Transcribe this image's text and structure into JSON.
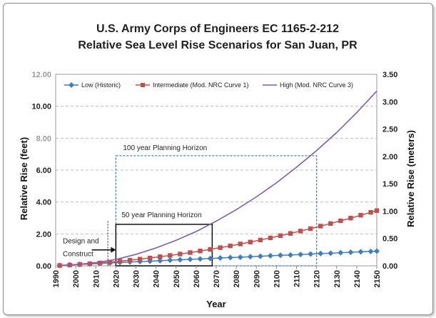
{
  "chart_data": {
    "type": "line",
    "title": [
      "U.S. Army Corps of Engineers EC 1165-2-212",
      "Relative Sea Level Rise Scenarios for San Juan, PR"
    ],
    "xlabel": "Year",
    "ylabel_left": "Relative Rise (feet)",
    "ylabel_right": "Relative Rise (meters)",
    "xlim": [
      1990,
      2150
    ],
    "ylim_left": [
      0,
      12
    ],
    "ylim_right": [
      0,
      3.5
    ],
    "x_ticks": [
      "1990",
      "2000",
      "2010",
      "2020",
      "2030",
      "2040",
      "2050",
      "2060",
      "2070",
      "2080",
      "2090",
      "2100",
      "2110",
      "2120",
      "2130",
      "2140",
      "2150"
    ],
    "y_ticks_left": [
      "0.00",
      "2.00",
      "4.00",
      "6.00",
      "8.00",
      "10.00",
      "12.00"
    ],
    "y_ticks_right": [
      "0.00",
      "0.50",
      "1.00",
      "1.50",
      "2.00",
      "2.50",
      "3.00",
      "3.50"
    ],
    "grid": "horizontal dashed",
    "legend_position": "top",
    "series": [
      {
        "name": "Low (Historic)",
        "color": "#3f7dbf",
        "marker": "diamond",
        "x": [
          1992,
          1997,
          2002,
          2007,
          2012,
          2017,
          2022,
          2027,
          2032,
          2037,
          2042,
          2047,
          2052,
          2057,
          2062,
          2067,
          2072,
          2077,
          2082,
          2087,
          2092,
          2097,
          2102,
          2107,
          2112,
          2117,
          2122,
          2127,
          2132,
          2137,
          2142,
          2147,
          2150
        ],
        "y": [
          0.03,
          0.06,
          0.09,
          0.12,
          0.15,
          0.18,
          0.21,
          0.24,
          0.27,
          0.29,
          0.32,
          0.35,
          0.38,
          0.41,
          0.43,
          0.46,
          0.49,
          0.52,
          0.54,
          0.57,
          0.6,
          0.63,
          0.66,
          0.68,
          0.71,
          0.74,
          0.77,
          0.79,
          0.82,
          0.85,
          0.88,
          0.9,
          0.92
        ]
      },
      {
        "name": "Intermediate (Mod. NRC Curve 1)",
        "color": "#c0504d",
        "marker": "square",
        "x": [
          1992,
          1997,
          2002,
          2007,
          2012,
          2017,
          2022,
          2027,
          2032,
          2037,
          2042,
          2047,
          2052,
          2057,
          2062,
          2067,
          2072,
          2077,
          2082,
          2087,
          2092,
          2097,
          2102,
          2107,
          2112,
          2117,
          2122,
          2127,
          2132,
          2137,
          2142,
          2147,
          2150
        ],
        "y": [
          0.02,
          0.05,
          0.09,
          0.13,
          0.18,
          0.23,
          0.29,
          0.35,
          0.42,
          0.49,
          0.57,
          0.65,
          0.74,
          0.83,
          0.93,
          1.03,
          1.14,
          1.25,
          1.37,
          1.49,
          1.62,
          1.75,
          1.89,
          2.03,
          2.18,
          2.33,
          2.49,
          2.65,
          2.82,
          2.99,
          3.17,
          3.35,
          3.46
        ]
      },
      {
        "name": "High (Mod. NRC Curve 3)",
        "color": "#7f5fa5",
        "marker": "none",
        "x": [
          1992,
          2000,
          2010,
          2020,
          2030,
          2040,
          2050,
          2060,
          2070,
          2080,
          2090,
          2100,
          2110,
          2120,
          2130,
          2140,
          2150
        ],
        "y": [
          0.0,
          0.08,
          0.2,
          0.4,
          0.72,
          1.12,
          1.6,
          2.15,
          2.8,
          3.52,
          4.32,
          5.2,
          6.18,
          7.22,
          8.35,
          9.6,
          10.95
        ]
      }
    ],
    "annotations": [
      {
        "text": "100 year Planning Horizon",
        "style": "dashed-blue box",
        "x_range": [
          2020,
          2120
        ],
        "y_range": [
          0.0,
          6.9
        ]
      },
      {
        "text": "50 year Planning Horizon",
        "style": "solid-black box",
        "x_range": [
          2020,
          2068
        ],
        "y_range": [
          0.0,
          2.6
        ]
      },
      {
        "text": [
          "Design and",
          "Construct"
        ],
        "style": "arrow to 2020"
      }
    ],
    "partially_obscured_tick_labels": {
      "12.00": "12.00",
      "8.00": "8.00"
    }
  }
}
